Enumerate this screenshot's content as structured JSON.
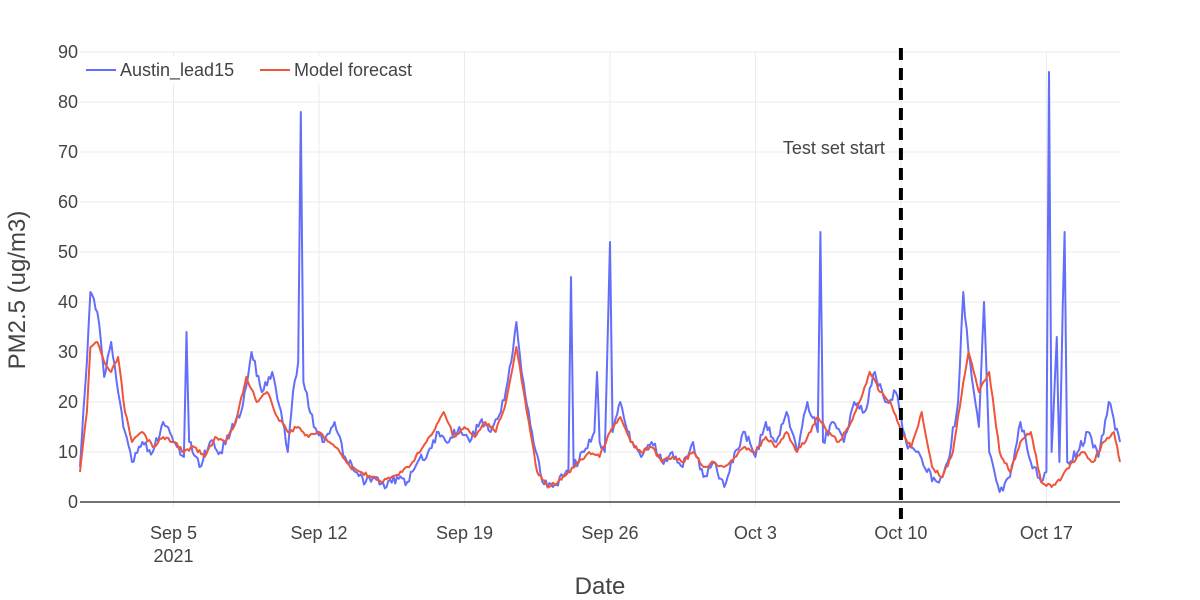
{
  "chart_data": {
    "type": "line",
    "xlabel": "Date",
    "ylabel": "PM2.5 (ug/m3)",
    "xlim": [
      "2021-08-31 12:00",
      "2021-10-20 13:00"
    ],
    "ylim": [
      -1,
      90
    ],
    "x_ticks": [
      {
        "date": "2021-09-05",
        "label": "Sep 5",
        "sublabel": "2021"
      },
      {
        "date": "2021-09-12",
        "label": "Sep 12",
        "sublabel": ""
      },
      {
        "date": "2021-09-19",
        "label": "Sep 19",
        "sublabel": ""
      },
      {
        "date": "2021-09-26",
        "label": "Sep 26",
        "sublabel": ""
      },
      {
        "date": "2021-10-03",
        "label": "Oct 3",
        "sublabel": ""
      },
      {
        "date": "2021-10-10",
        "label": "Oct 10",
        "sublabel": ""
      },
      {
        "date": "2021-10-17",
        "label": "Oct 17",
        "sublabel": ""
      }
    ],
    "y_ticks": [
      0,
      10,
      20,
      30,
      40,
      50,
      60,
      70,
      80,
      90
    ],
    "grid": true,
    "legend_position": "top-left",
    "series": [
      {
        "name": "Austin_lead15",
        "color": "#636efa",
        "points": [
          [
            "2021-08-31 12:00",
            7
          ],
          [
            "2021-08-31 20:00",
            28
          ],
          [
            "2021-09-01 00:00",
            42
          ],
          [
            "2021-09-01 08:00",
            38
          ],
          [
            "2021-09-01 16:00",
            25
          ],
          [
            "2021-09-02 00:00",
            32
          ],
          [
            "2021-09-02 08:00",
            22
          ],
          [
            "2021-09-02 16:00",
            14
          ],
          [
            "2021-09-03 00:00",
            8
          ],
          [
            "2021-09-03 12:00",
            12
          ],
          [
            "2021-09-04 00:00",
            10
          ],
          [
            "2021-09-04 12:00",
            16
          ],
          [
            "2021-09-05 00:00",
            12
          ],
          [
            "2021-09-05 12:00",
            9
          ],
          [
            "2021-09-05 15:00",
            34
          ],
          [
            "2021-09-05 18:00",
            12
          ],
          [
            "2021-09-06 06:00",
            7
          ],
          [
            "2021-09-06 18:00",
            12
          ],
          [
            "2021-09-07 06:00",
            10
          ],
          [
            "2021-09-07 18:00",
            14
          ],
          [
            "2021-09-08 06:00",
            18
          ],
          [
            "2021-09-08 18:00",
            30
          ],
          [
            "2021-09-09 06:00",
            22
          ],
          [
            "2021-09-09 18:00",
            26
          ],
          [
            "2021-09-10 06:00",
            16
          ],
          [
            "2021-09-10 12:00",
            10
          ],
          [
            "2021-09-10 18:00",
            22
          ],
          [
            "2021-09-11 00:00",
            28
          ],
          [
            "2021-09-11 03:00",
            78
          ],
          [
            "2021-09-11 06:00",
            24
          ],
          [
            "2021-09-11 18:00",
            15
          ],
          [
            "2021-09-12 06:00",
            12
          ],
          [
            "2021-09-12 18:00",
            16
          ],
          [
            "2021-09-13 06:00",
            9
          ],
          [
            "2021-09-13 18:00",
            6
          ],
          [
            "2021-09-14 06:00",
            4
          ],
          [
            "2021-09-14 18:00",
            5
          ],
          [
            "2021-09-15 06:00",
            3
          ],
          [
            "2021-09-15 18:00",
            5
          ],
          [
            "2021-09-16 06:00",
            4
          ],
          [
            "2021-09-16 18:00",
            8
          ],
          [
            "2021-09-17 06:00",
            10
          ],
          [
            "2021-09-17 18:00",
            14
          ],
          [
            "2021-09-18 06:00",
            12
          ],
          [
            "2021-09-18 18:00",
            15
          ],
          [
            "2021-09-19 06:00",
            12
          ],
          [
            "2021-09-19 18:00",
            16
          ],
          [
            "2021-09-20 06:00",
            14
          ],
          [
            "2021-09-20 18:00",
            18
          ],
          [
            "2021-09-21 06:00",
            28
          ],
          [
            "2021-09-21 12:00",
            36
          ],
          [
            "2021-09-21 18:00",
            26
          ],
          [
            "2021-09-22 06:00",
            14
          ],
          [
            "2021-09-22 18:00",
            4
          ],
          [
            "2021-09-23 06:00",
            3
          ],
          [
            "2021-09-23 18:00",
            5
          ],
          [
            "2021-09-24 00:00",
            6
          ],
          [
            "2021-09-24 03:00",
            45
          ],
          [
            "2021-09-24 06:00",
            7
          ],
          [
            "2021-09-24 18:00",
            10
          ],
          [
            "2021-09-25 06:00",
            14
          ],
          [
            "2021-09-25 09:00",
            26
          ],
          [
            "2021-09-25 12:00",
            12
          ],
          [
            "2021-09-25 18:00",
            10
          ],
          [
            "2021-09-26 00:00",
            52
          ],
          [
            "2021-09-26 03:00",
            14
          ],
          [
            "2021-09-26 12:00",
            20
          ],
          [
            "2021-09-27 00:00",
            12
          ],
          [
            "2021-09-27 12:00",
            9
          ],
          [
            "2021-09-28 00:00",
            12
          ],
          [
            "2021-09-28 12:00",
            8
          ],
          [
            "2021-09-29 00:00",
            10
          ],
          [
            "2021-09-29 12:00",
            7
          ],
          [
            "2021-09-30 00:00",
            12
          ],
          [
            "2021-09-30 12:00",
            5
          ],
          [
            "2021-10-01 00:00",
            8
          ],
          [
            "2021-10-01 12:00",
            3
          ],
          [
            "2021-10-02 00:00",
            10
          ],
          [
            "2021-10-02 12:00",
            14
          ],
          [
            "2021-10-03 00:00",
            9
          ],
          [
            "2021-10-03 12:00",
            16
          ],
          [
            "2021-10-04 00:00",
            12
          ],
          [
            "2021-10-04 12:00",
            18
          ],
          [
            "2021-10-05 00:00",
            10
          ],
          [
            "2021-10-05 12:00",
            20
          ],
          [
            "2021-10-06 00:00",
            14
          ],
          [
            "2021-10-06 03:00",
            54
          ],
          [
            "2021-10-06 06:00",
            12
          ],
          [
            "2021-10-06 18:00",
            16
          ],
          [
            "2021-10-07 06:00",
            12
          ],
          [
            "2021-10-07 18:00",
            20
          ],
          [
            "2021-10-08 06:00",
            18
          ],
          [
            "2021-10-08 18:00",
            26
          ],
          [
            "2021-10-09 06:00",
            20
          ],
          [
            "2021-10-09 18:00",
            22
          ],
          [
            "2021-10-10 06:00",
            12
          ],
          [
            "2021-10-10 18:00",
            10
          ],
          [
            "2021-10-11 06:00",
            6
          ],
          [
            "2021-10-11 18:00",
            4
          ],
          [
            "2021-10-12 06:00",
            8
          ],
          [
            "2021-10-12 18:00",
            20
          ],
          [
            "2021-10-13 00:00",
            42
          ],
          [
            "2021-10-13 06:00",
            30
          ],
          [
            "2021-10-13 18:00",
            15
          ],
          [
            "2021-10-14 00:00",
            40
          ],
          [
            "2021-10-14 06:00",
            10
          ],
          [
            "2021-10-14 18:00",
            2
          ],
          [
            "2021-10-15 06:00",
            5
          ],
          [
            "2021-10-15 18:00",
            16
          ],
          [
            "2021-10-16 06:00",
            8
          ],
          [
            "2021-10-16 18:00",
            4
          ],
          [
            "2021-10-17 00:00",
            6
          ],
          [
            "2021-10-17 03:00",
            86
          ],
          [
            "2021-10-17 06:00",
            10
          ],
          [
            "2021-10-17 12:00",
            33
          ],
          [
            "2021-10-17 15:00",
            8
          ],
          [
            "2021-10-17 21:00",
            54
          ],
          [
            "2021-10-18 00:00",
            8
          ],
          [
            "2021-10-18 12:00",
            10
          ],
          [
            "2021-10-19 00:00",
            14
          ],
          [
            "2021-10-19 12:00",
            9
          ],
          [
            "2021-10-20 00:00",
            20
          ],
          [
            "2021-10-20 13:00",
            12
          ]
        ]
      },
      {
        "name": "Model forecast",
        "color": "#ef553b",
        "points": [
          [
            "2021-08-31 12:00",
            6
          ],
          [
            "2021-08-31 20:00",
            18
          ],
          [
            "2021-09-01 00:00",
            31
          ],
          [
            "2021-09-01 08:00",
            32
          ],
          [
            "2021-09-01 16:00",
            28
          ],
          [
            "2021-09-02 00:00",
            26
          ],
          [
            "2021-09-02 08:00",
            29
          ],
          [
            "2021-09-02 16:00",
            18
          ],
          [
            "2021-09-03 00:00",
            12
          ],
          [
            "2021-09-03 12:00",
            14
          ],
          [
            "2021-09-04 00:00",
            11
          ],
          [
            "2021-09-04 12:00",
            13
          ],
          [
            "2021-09-05 00:00",
            12
          ],
          [
            "2021-09-05 12:00",
            10
          ],
          [
            "2021-09-06 00:00",
            11
          ],
          [
            "2021-09-06 12:00",
            9
          ],
          [
            "2021-09-07 00:00",
            13
          ],
          [
            "2021-09-07 12:00",
            12
          ],
          [
            "2021-09-08 00:00",
            16
          ],
          [
            "2021-09-08 12:00",
            25
          ],
          [
            "2021-09-09 00:00",
            20
          ],
          [
            "2021-09-09 12:00",
            22
          ],
          [
            "2021-09-10 00:00",
            17
          ],
          [
            "2021-09-10 12:00",
            14
          ],
          [
            "2021-09-11 00:00",
            15
          ],
          [
            "2021-09-11 12:00",
            13
          ],
          [
            "2021-09-12 00:00",
            14
          ],
          [
            "2021-09-12 12:00",
            12
          ],
          [
            "2021-09-13 00:00",
            10
          ],
          [
            "2021-09-13 12:00",
            7
          ],
          [
            "2021-09-14 00:00",
            6
          ],
          [
            "2021-09-14 12:00",
            5
          ],
          [
            "2021-09-15 00:00",
            4
          ],
          [
            "2021-09-15 12:00",
            5
          ],
          [
            "2021-09-16 00:00",
            6
          ],
          [
            "2021-09-16 12:00",
            8
          ],
          [
            "2021-09-17 00:00",
            11
          ],
          [
            "2021-09-17 12:00",
            14
          ],
          [
            "2021-09-18 00:00",
            18
          ],
          [
            "2021-09-18 12:00",
            13
          ],
          [
            "2021-09-19 00:00",
            15
          ],
          [
            "2021-09-19 12:00",
            13
          ],
          [
            "2021-09-20 00:00",
            16
          ],
          [
            "2021-09-20 12:00",
            14
          ],
          [
            "2021-09-21 00:00",
            20
          ],
          [
            "2021-09-21 12:00",
            31
          ],
          [
            "2021-09-22 00:00",
            18
          ],
          [
            "2021-09-22 12:00",
            6
          ],
          [
            "2021-09-23 00:00",
            3
          ],
          [
            "2021-09-23 12:00",
            4
          ],
          [
            "2021-09-24 00:00",
            6
          ],
          [
            "2021-09-24 12:00",
            8
          ],
          [
            "2021-09-25 00:00",
            10
          ],
          [
            "2021-09-25 12:00",
            9
          ],
          [
            "2021-09-26 00:00",
            14
          ],
          [
            "2021-09-26 12:00",
            17
          ],
          [
            "2021-09-27 00:00",
            12
          ],
          [
            "2021-09-27 12:00",
            10
          ],
          [
            "2021-09-28 00:00",
            11
          ],
          [
            "2021-09-28 12:00",
            8
          ],
          [
            "2021-09-29 00:00",
            9
          ],
          [
            "2021-09-29 12:00",
            8
          ],
          [
            "2021-09-30 00:00",
            10
          ],
          [
            "2021-09-30 12:00",
            7
          ],
          [
            "2021-10-01 00:00",
            8
          ],
          [
            "2021-10-01 12:00",
            7
          ],
          [
            "2021-10-02 00:00",
            9
          ],
          [
            "2021-10-02 12:00",
            11
          ],
          [
            "2021-10-03 00:00",
            10
          ],
          [
            "2021-10-03 12:00",
            13
          ],
          [
            "2021-10-04 00:00",
            11
          ],
          [
            "2021-10-04 12:00",
            14
          ],
          [
            "2021-10-05 00:00",
            10
          ],
          [
            "2021-10-05 12:00",
            13
          ],
          [
            "2021-10-06 00:00",
            17
          ],
          [
            "2021-10-06 12:00",
            14
          ],
          [
            "2021-10-07 00:00",
            12
          ],
          [
            "2021-10-07 12:00",
            15
          ],
          [
            "2021-10-08 00:00",
            20
          ],
          [
            "2021-10-08 12:00",
            26
          ],
          [
            "2021-10-09 00:00",
            22
          ],
          [
            "2021-10-09 12:00",
            20
          ],
          [
            "2021-10-10 00:00",
            14
          ],
          [
            "2021-10-10 12:00",
            11
          ],
          [
            "2021-10-11 00:00",
            18
          ],
          [
            "2021-10-11 12:00",
            7
          ],
          [
            "2021-10-12 00:00",
            5
          ],
          [
            "2021-10-12 12:00",
            10
          ],
          [
            "2021-10-13 00:00",
            24
          ],
          [
            "2021-10-13 06:00",
            30
          ],
          [
            "2021-10-13 18:00",
            22
          ],
          [
            "2021-10-14 06:00",
            26
          ],
          [
            "2021-10-14 18:00",
            10
          ],
          [
            "2021-10-15 06:00",
            6
          ],
          [
            "2021-10-15 18:00",
            12
          ],
          [
            "2021-10-16 06:00",
            14
          ],
          [
            "2021-10-16 18:00",
            4
          ],
          [
            "2021-10-17 06:00",
            3
          ],
          [
            "2021-10-17 18:00",
            5
          ],
          [
            "2021-10-18 06:00",
            8
          ],
          [
            "2021-10-18 18:00",
            10
          ],
          [
            "2021-10-19 06:00",
            8
          ],
          [
            "2021-10-19 18:00",
            12
          ],
          [
            "2021-10-20 06:00",
            14
          ],
          [
            "2021-10-20 13:00",
            8
          ]
        ]
      }
    ],
    "annotations": [
      {
        "type": "vline",
        "x": "2021-10-10",
        "style": "dashed",
        "color": "#000000"
      },
      {
        "type": "text",
        "text": "Test set start",
        "x": "2021-10-10",
        "y": 70
      }
    ]
  }
}
